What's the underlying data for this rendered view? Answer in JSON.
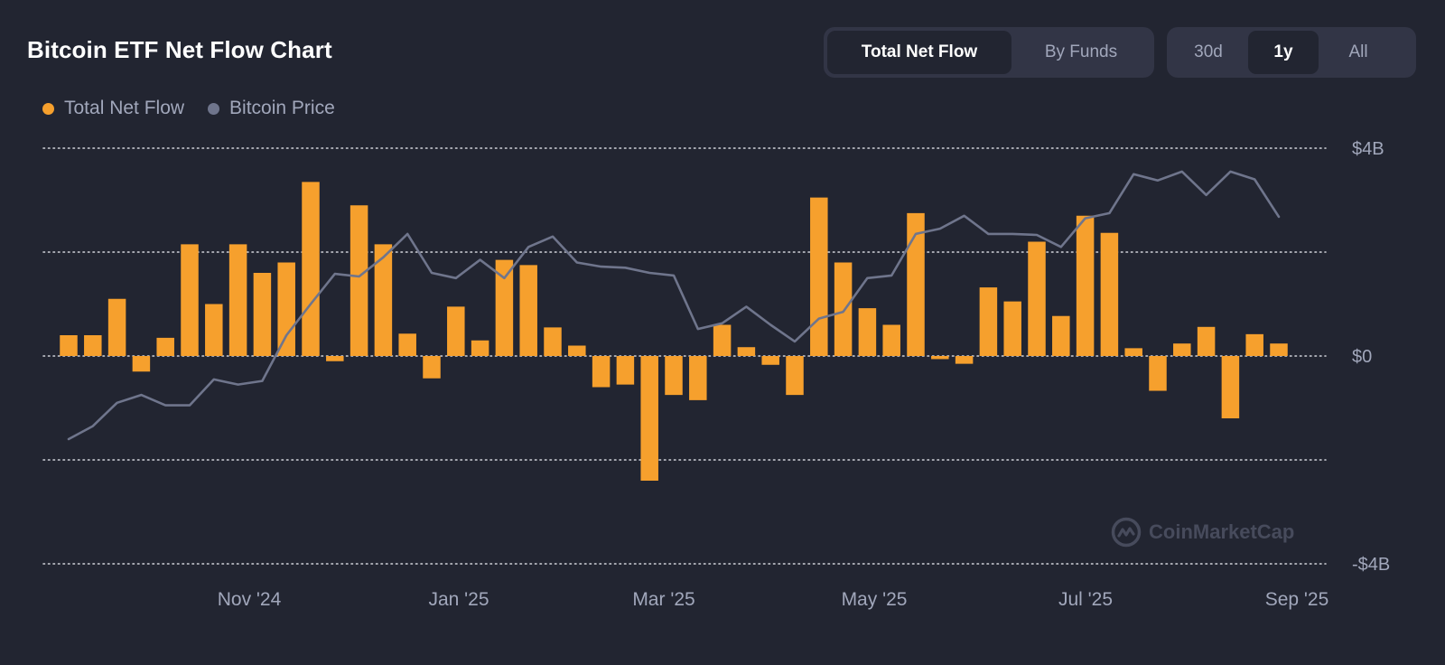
{
  "title": "Bitcoin ETF Net Flow Chart",
  "view_tabs": [
    {
      "label": "Total Net Flow",
      "active": true
    },
    {
      "label": "By Funds",
      "active": false
    }
  ],
  "range_tabs": [
    {
      "label": "30d",
      "active": false
    },
    {
      "label": "1y",
      "active": true
    },
    {
      "label": "All",
      "active": false
    }
  ],
  "legend": [
    {
      "label": "Total Net Flow",
      "color": "#f6a02d"
    },
    {
      "label": "Bitcoin Price",
      "color": "#6f758c"
    }
  ],
  "watermark": "CoinMarketCap",
  "colors": {
    "background": "#222531",
    "bar": "#f6a02d",
    "line": "#6f758c",
    "grid": "#e6e8ee",
    "axis_text": "#a1a7bb"
  },
  "chart_data": {
    "type": "bar",
    "x_ticks": [
      "Nov '24",
      "Jan '25",
      "Mar '25",
      "May '25",
      "Jul '25",
      "Sep '25"
    ],
    "y_ticks": [
      "$4B",
      "$0",
      "-$4B"
    ],
    "ylim": [
      -4,
      4
    ],
    "grid": "dotted horizontal",
    "legend_position": "top-left",
    "series": [
      {
        "name": "Total Net Flow",
        "type": "bar",
        "unit": "$B",
        "values": [
          0.4,
          0.4,
          1.1,
          -0.3,
          0.35,
          2.15,
          1.0,
          2.15,
          1.6,
          1.8,
          3.35,
          -0.1,
          2.9,
          2.15,
          0.43,
          -0.43,
          0.95,
          0.3,
          1.85,
          1.75,
          0.55,
          0.2,
          -0.6,
          -0.55,
          -2.4,
          -0.75,
          -0.85,
          0.6,
          0.17,
          -0.17,
          -0.75,
          3.05,
          1.8,
          0.92,
          0.6,
          2.75,
          -0.06,
          -0.15,
          1.32,
          1.05,
          2.2,
          0.77,
          2.7,
          2.37,
          0.15,
          -0.67,
          0.24,
          0.56,
          -1.2,
          0.42,
          0.24
        ]
      },
      {
        "name": "Bitcoin Price",
        "type": "line",
        "scale": "relative (no axis shown)",
        "values": [
          -1.6,
          -1.35,
          -0.9,
          -0.75,
          -0.95,
          -0.95,
          -0.45,
          -0.55,
          -0.48,
          0.4,
          1.0,
          1.58,
          1.53,
          1.9,
          2.35,
          1.6,
          1.5,
          1.85,
          1.5,
          2.1,
          2.3,
          1.8,
          1.72,
          1.7,
          1.6,
          1.55,
          0.52,
          0.63,
          0.95,
          0.6,
          0.28,
          0.72,
          0.85,
          1.5,
          1.55,
          2.35,
          2.45,
          2.7,
          2.35,
          2.35,
          2.33,
          2.1,
          2.65,
          2.75,
          3.5,
          3.38,
          3.55,
          3.1,
          3.55,
          3.4,
          2.68
        ]
      }
    ]
  }
}
